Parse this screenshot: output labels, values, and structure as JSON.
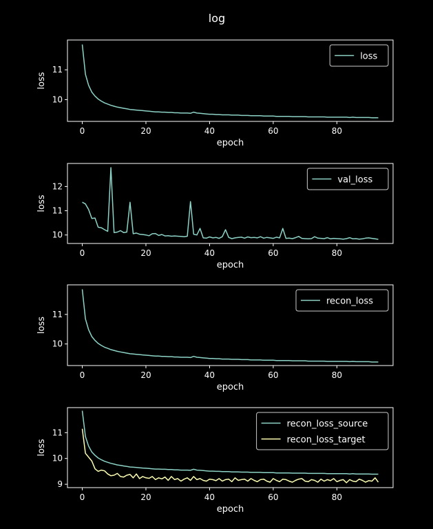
{
  "figure": {
    "title": "log",
    "background": "#000000",
    "foreground": "#ffffff",
    "colors": {
      "teal": "#8dd3c7",
      "yellow": "#feffb3"
    }
  },
  "chart_data": [
    {
      "type": "line",
      "xlabel": "epoch",
      "ylabel": "loss",
      "xlim": [
        -4.65,
        97.65
      ],
      "ylim": [
        9.27,
        12.0
      ],
      "xticks": [
        0,
        20,
        40,
        60,
        80
      ],
      "yticks": [
        10,
        11
      ],
      "legend": "top-right",
      "series": [
        {
          "name": "loss",
          "color": "#8dd3c7",
          "values": [
            11.85,
            10.85,
            10.48,
            10.25,
            10.12,
            10.02,
            9.95,
            9.89,
            9.85,
            9.81,
            9.78,
            9.75,
            9.73,
            9.71,
            9.69,
            9.67,
            9.66,
            9.65,
            9.64,
            9.63,
            9.62,
            9.61,
            9.6,
            9.59,
            9.59,
            9.58,
            9.58,
            9.57,
            9.57,
            9.56,
            9.56,
            9.55,
            9.55,
            9.55,
            9.54,
            9.58,
            9.55,
            9.54,
            9.53,
            9.52,
            9.51,
            9.51,
            9.5,
            9.5,
            9.49,
            9.49,
            9.49,
            9.48,
            9.48,
            9.48,
            9.47,
            9.47,
            9.47,
            9.46,
            9.46,
            9.46,
            9.46,
            9.45,
            9.45,
            9.45,
            9.45,
            9.44,
            9.44,
            9.44,
            9.44,
            9.44,
            9.43,
            9.43,
            9.43,
            9.43,
            9.43,
            9.42,
            9.42,
            9.42,
            9.42,
            9.42,
            9.42,
            9.41,
            9.41,
            9.41,
            9.41,
            9.41,
            9.41,
            9.41,
            9.4,
            9.41,
            9.4,
            9.4,
            9.4,
            9.4,
            9.4,
            9.39,
            9.39,
            9.39
          ]
        }
      ]
    },
    {
      "type": "line",
      "xlabel": "epoch",
      "ylabel": "loss",
      "xlim": [
        -4.65,
        97.65
      ],
      "ylim": [
        9.65,
        12.95
      ],
      "xticks": [
        0,
        20,
        40,
        60,
        80
      ],
      "yticks": [
        10,
        11,
        12
      ],
      "legend": "top-right",
      "series": [
        {
          "name": "val_loss",
          "color": "#8dd3c7",
          "values": [
            11.35,
            11.28,
            11.05,
            10.68,
            10.7,
            10.32,
            10.3,
            10.22,
            10.15,
            12.78,
            10.1,
            10.12,
            10.18,
            10.1,
            10.12,
            11.35,
            10.05,
            10.08,
            10.03,
            10.02,
            10.0,
            9.97,
            10.05,
            10.06,
            9.98,
            10.02,
            9.96,
            9.97,
            9.95,
            9.96,
            9.95,
            9.94,
            9.93,
            9.95,
            11.38,
            10.03,
            10.0,
            10.27,
            9.88,
            9.87,
            9.92,
            9.88,
            9.9,
            9.86,
            9.93,
            10.22,
            9.9,
            9.85,
            9.88,
            9.9,
            9.91,
            9.87,
            9.92,
            9.89,
            9.9,
            9.88,
            9.93,
            9.87,
            9.9,
            9.88,
            9.86,
            9.91,
            9.88,
            10.27,
            9.86,
            9.87,
            9.85,
            9.89,
            9.94,
            9.86,
            9.85,
            9.84,
            9.85,
            9.93,
            9.87,
            9.86,
            9.85,
            9.89,
            9.84,
            9.86,
            9.85,
            9.84,
            9.83,
            9.85,
            9.89,
            9.84,
            9.85,
            9.83,
            9.84,
            9.87,
            9.88,
            9.86,
            9.84,
            9.82
          ]
        }
      ]
    },
    {
      "type": "line",
      "xlabel": "epoch",
      "ylabel": "loss",
      "xlim": [
        -4.65,
        97.65
      ],
      "ylim": [
        9.27,
        12.0
      ],
      "xticks": [
        0,
        20,
        40,
        60,
        80
      ],
      "yticks": [
        10,
        11
      ],
      "legend": "top-right",
      "series": [
        {
          "name": "recon_loss",
          "color": "#8dd3c7",
          "values": [
            11.85,
            10.85,
            10.48,
            10.25,
            10.12,
            10.02,
            9.95,
            9.89,
            9.85,
            9.81,
            9.78,
            9.75,
            9.73,
            9.71,
            9.69,
            9.67,
            9.66,
            9.65,
            9.64,
            9.63,
            9.62,
            9.61,
            9.6,
            9.59,
            9.59,
            9.58,
            9.58,
            9.57,
            9.57,
            9.56,
            9.56,
            9.55,
            9.55,
            9.55,
            9.54,
            9.58,
            9.55,
            9.54,
            9.53,
            9.52,
            9.51,
            9.51,
            9.5,
            9.5,
            9.49,
            9.49,
            9.49,
            9.48,
            9.48,
            9.48,
            9.47,
            9.47,
            9.47,
            9.46,
            9.46,
            9.46,
            9.46,
            9.45,
            9.45,
            9.45,
            9.45,
            9.44,
            9.44,
            9.44,
            9.44,
            9.44,
            9.43,
            9.43,
            9.43,
            9.43,
            9.43,
            9.42,
            9.42,
            9.42,
            9.42,
            9.42,
            9.42,
            9.41,
            9.41,
            9.41,
            9.41,
            9.41,
            9.41,
            9.41,
            9.4,
            9.41,
            9.4,
            9.4,
            9.4,
            9.4,
            9.4,
            9.39,
            9.39,
            9.39
          ]
        }
      ]
    },
    {
      "type": "line",
      "xlabel": "epoch",
      "ylabel": "loss",
      "xlim": [
        -4.65,
        97.65
      ],
      "ylim": [
        8.87,
        11.97
      ],
      "xticks": [
        0,
        20,
        40,
        60,
        80
      ],
      "yticks": [
        9,
        10,
        11
      ],
      "legend": "top-right",
      "series": [
        {
          "name": "recon_loss_source",
          "color": "#8dd3c7",
          "values": [
            11.85,
            10.85,
            10.48,
            10.25,
            10.12,
            10.02,
            9.95,
            9.89,
            9.85,
            9.81,
            9.78,
            9.75,
            9.73,
            9.71,
            9.69,
            9.67,
            9.66,
            9.65,
            9.64,
            9.63,
            9.62,
            9.61,
            9.6,
            9.59,
            9.59,
            9.58,
            9.58,
            9.57,
            9.57,
            9.56,
            9.56,
            9.55,
            9.55,
            9.55,
            9.54,
            9.58,
            9.55,
            9.54,
            9.53,
            9.52,
            9.51,
            9.51,
            9.5,
            9.5,
            9.49,
            9.49,
            9.49,
            9.48,
            9.48,
            9.48,
            9.47,
            9.47,
            9.47,
            9.46,
            9.46,
            9.46,
            9.46,
            9.45,
            9.45,
            9.45,
            9.45,
            9.44,
            9.44,
            9.44,
            9.44,
            9.44,
            9.43,
            9.43,
            9.43,
            9.43,
            9.43,
            9.42,
            9.42,
            9.42,
            9.42,
            9.42,
            9.42,
            9.41,
            9.41,
            9.41,
            9.41,
            9.41,
            9.41,
            9.41,
            9.4,
            9.41,
            9.4,
            9.4,
            9.4,
            9.4,
            9.4,
            9.39,
            9.39,
            9.39
          ]
        },
        {
          "name": "recon_loss_target",
          "color": "#feffb3",
          "values": [
            11.15,
            10.2,
            10.05,
            9.9,
            9.6,
            9.5,
            9.55,
            9.52,
            9.4,
            9.33,
            9.35,
            9.42,
            9.3,
            9.28,
            9.35,
            9.38,
            9.25,
            9.4,
            9.22,
            9.3,
            9.25,
            9.23,
            9.3,
            9.18,
            9.25,
            9.21,
            9.28,
            9.15,
            9.3,
            9.18,
            9.22,
            9.12,
            9.2,
            9.25,
            9.15,
            9.3,
            9.18,
            9.22,
            9.15,
            9.12,
            9.2,
            9.18,
            9.14,
            9.22,
            9.12,
            9.18,
            9.2,
            9.1,
            9.25,
            9.15,
            9.18,
            9.2,
            9.12,
            9.22,
            9.15,
            9.1,
            9.18,
            9.2,
            9.12,
            9.08,
            9.22,
            9.15,
            9.1,
            9.2,
            9.18,
            9.12,
            9.08,
            9.15,
            9.2,
            9.22,
            9.12,
            9.1,
            9.18,
            9.15,
            9.08,
            9.2,
            9.12,
            9.18,
            9.14,
            9.22,
            9.1,
            9.15,
            9.18,
            9.06,
            9.18,
            9.12,
            9.1,
            9.2,
            9.15,
            9.08,
            9.14,
            9.12,
            9.25,
            9.08
          ]
        }
      ]
    }
  ]
}
